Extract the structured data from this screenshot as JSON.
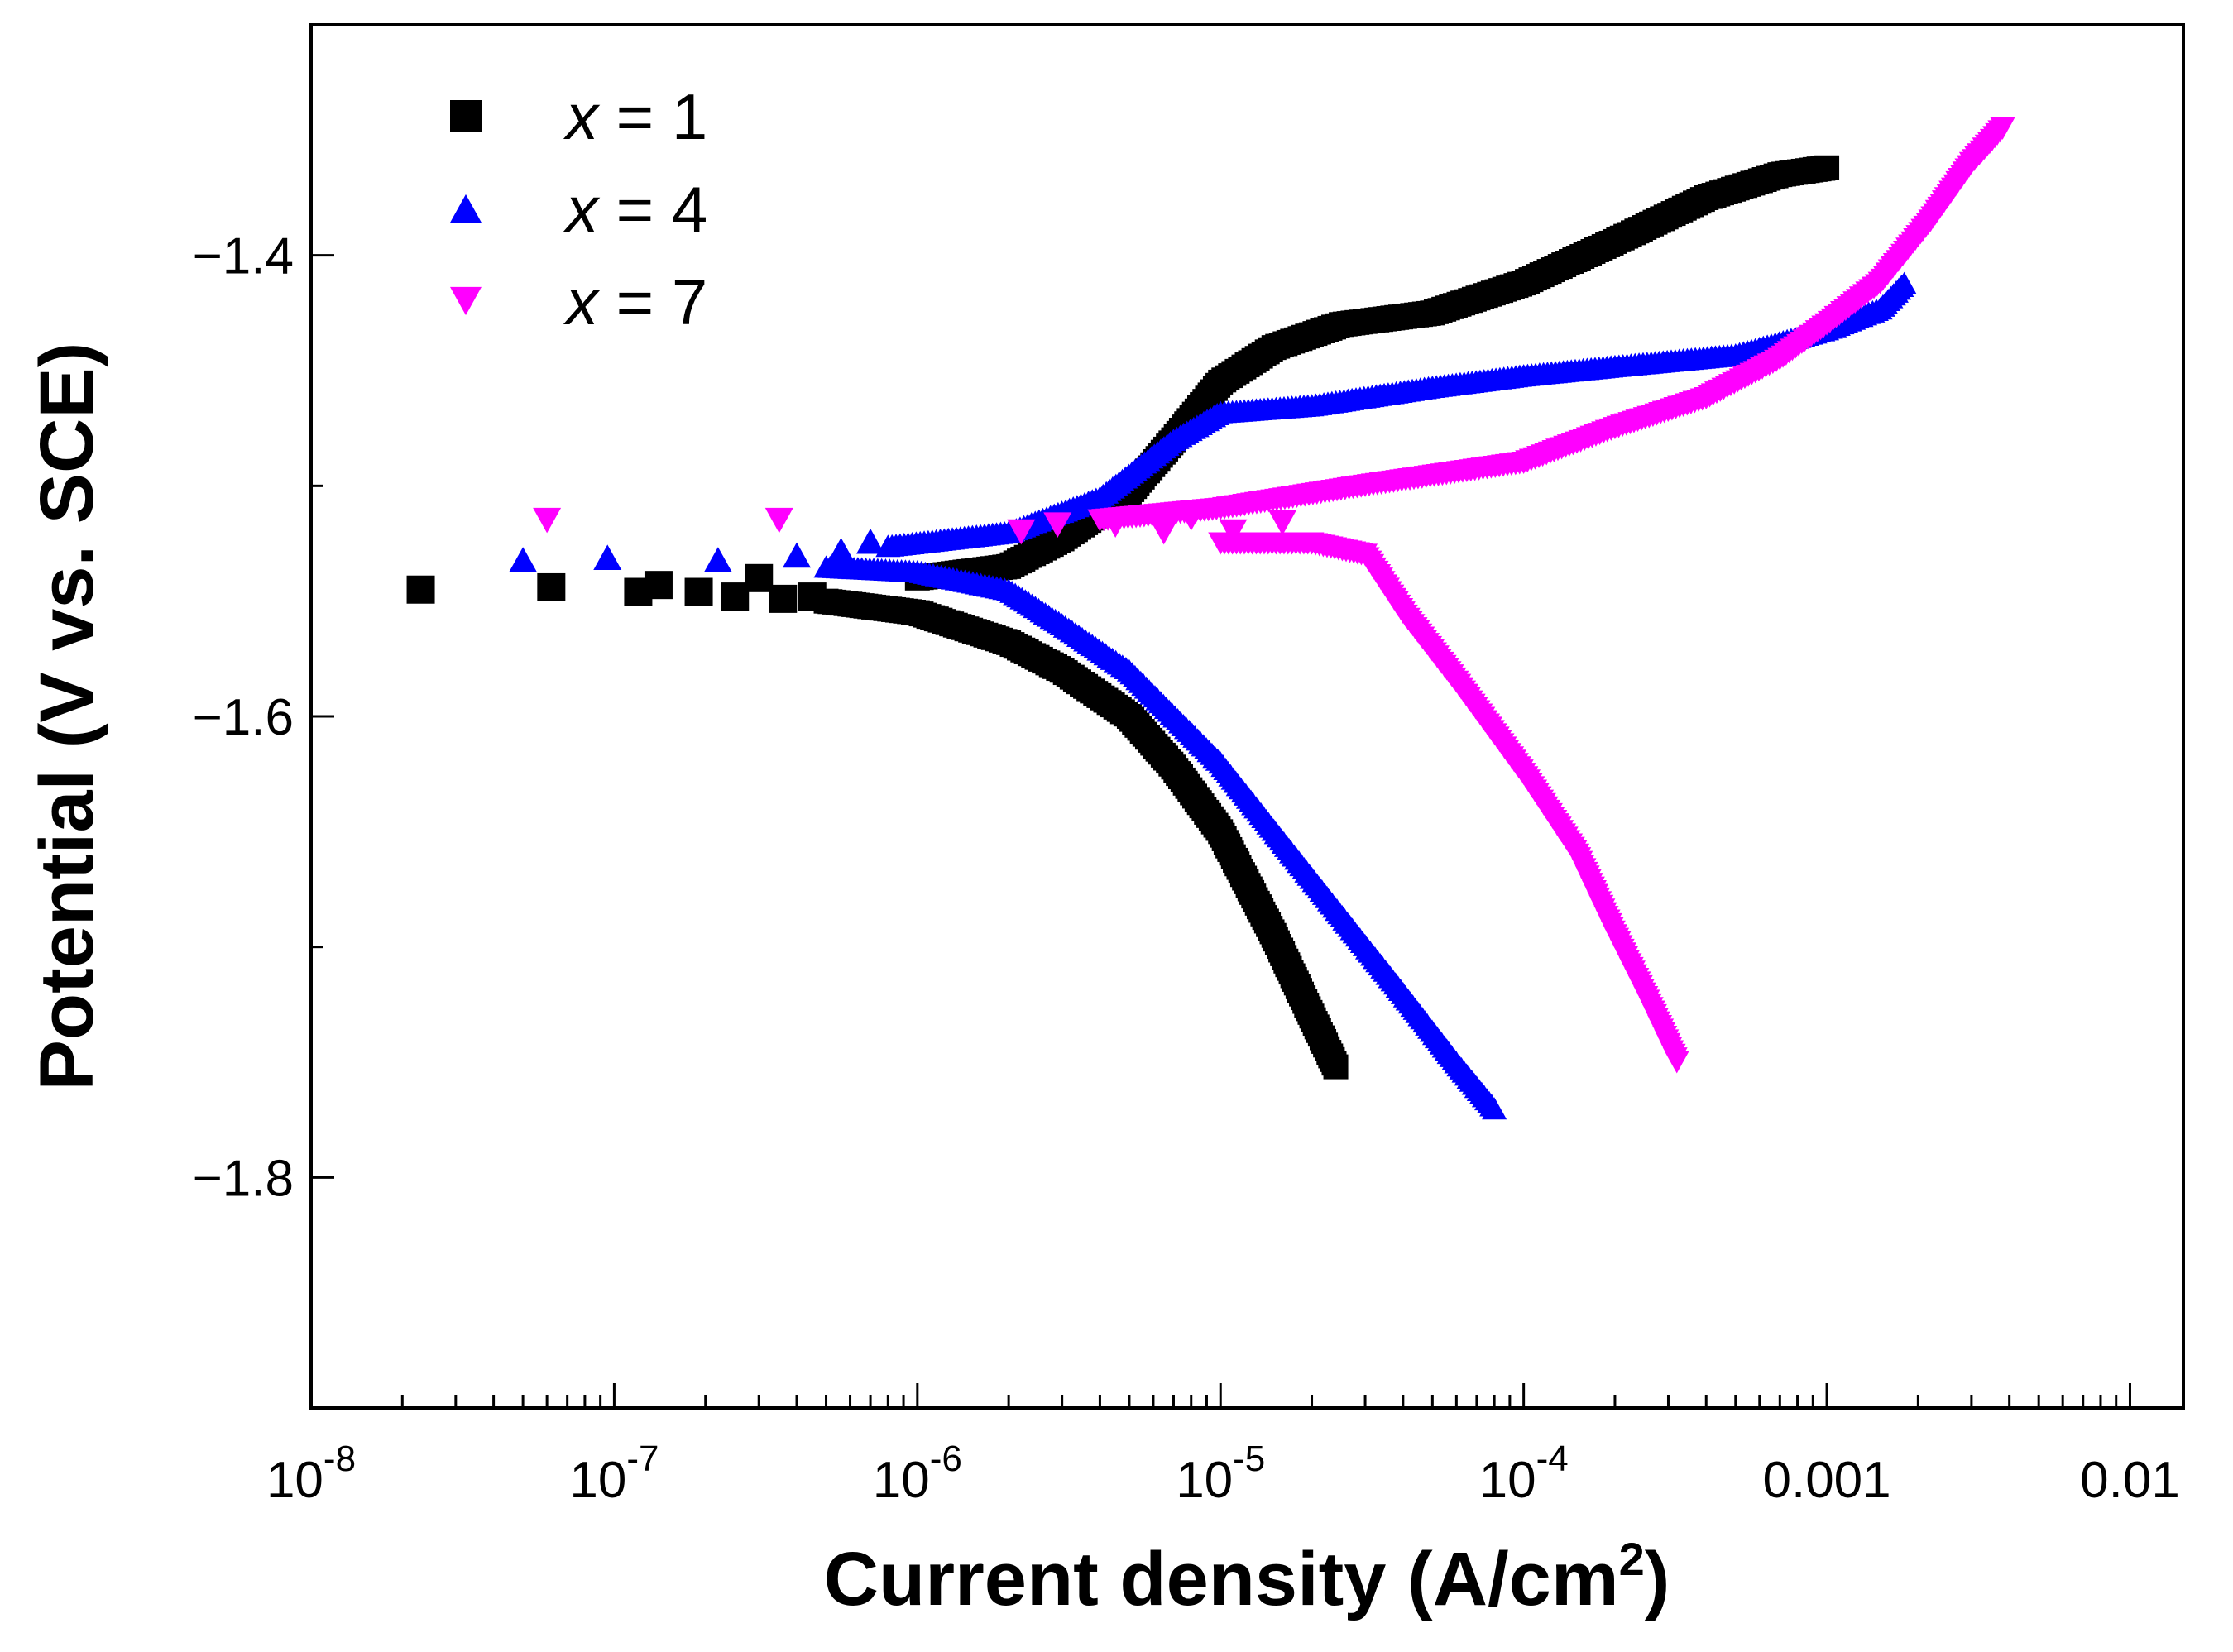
{
  "chart_data": {
    "type": "scatter",
    "xlabel": "Current density (A/cm",
    "xlabel_sup": "2",
    "xlabel_close": ")",
    "ylabel": "Potential (V vs. SCE)",
    "x_scale": "log",
    "xlim": [
      1e-08,
      0.015
    ],
    "ylim": [
      -1.9,
      -1.3
    ],
    "x_ticks": [
      {
        "value": 1e-08,
        "base": "10",
        "exp": "-8"
      },
      {
        "value": 1e-07,
        "base": "10",
        "exp": "-7"
      },
      {
        "value": 1e-06,
        "base": "10",
        "exp": "-6"
      },
      {
        "value": 1e-05,
        "base": "10",
        "exp": "-5"
      },
      {
        "value": 0.0001,
        "base": "10",
        "exp": "-4"
      },
      {
        "value": 0.001,
        "label": "0.001"
      },
      {
        "value": 0.01,
        "label": "0.01"
      }
    ],
    "y_ticks": [
      {
        "value": -1.4,
        "label": "−1.4"
      },
      {
        "value": -1.6,
        "label": "−1.6"
      },
      {
        "value": -1.8,
        "label": "−1.8"
      }
    ],
    "y_minor_ticks": [
      -1.3,
      -1.5,
      -1.7
    ],
    "legend_position": "top-left",
    "series": [
      {
        "name": "x = 1",
        "var": "x",
        "eq": " = ",
        "num": "1",
        "marker": "square",
        "color": "#000000",
        "corrosion_potential": -1.545,
        "anodic": [
          [
            1e-06,
            -1.54
          ],
          [
            2e-06,
            -1.535
          ],
          [
            3e-06,
            -1.523
          ],
          [
            5e-06,
            -1.503
          ],
          [
            7e-06,
            -1.48
          ],
          [
            1e-05,
            -1.455
          ],
          [
            1.5e-05,
            -1.44
          ],
          [
            2.5e-05,
            -1.43
          ],
          [
            5e-05,
            -1.425
          ],
          [
            0.0001,
            -1.412
          ],
          [
            0.0002,
            -1.394
          ],
          [
            0.0004,
            -1.375
          ],
          [
            0.0007,
            -1.365
          ],
          [
            0.001,
            -1.362
          ]
        ],
        "cathodic": [
          [
            5e-07,
            -1.55
          ],
          [
            1e-06,
            -1.555
          ],
          [
            2e-06,
            -1.568
          ],
          [
            3e-06,
            -1.58
          ],
          [
            5e-06,
            -1.6
          ],
          [
            7e-06,
            -1.622
          ],
          [
            1e-05,
            -1.65
          ],
          [
            1.5e-05,
            -1.695
          ],
          [
            2e-05,
            -1.73
          ],
          [
            2.4e-05,
            -1.752
          ]
        ],
        "scatter_points": [
          [
            2.3e-08,
            -1.545
          ],
          [
            6.2e-08,
            -1.544
          ],
          [
            1.2e-07,
            -1.546
          ],
          [
            1.4e-07,
            -1.543
          ],
          [
            1.9e-07,
            -1.546
          ],
          [
            2.5e-07,
            -1.548
          ],
          [
            3e-07,
            -1.54
          ],
          [
            3.6e-07,
            -1.549
          ],
          [
            4.5e-07,
            -1.548
          ]
        ]
      },
      {
        "name": "x = 4",
        "var": "x",
        "eq": " = ",
        "num": "4",
        "marker": "triangle-up",
        "color": "#0000ff",
        "corrosion_potential": -1.535,
        "anodic": [
          [
            8e-07,
            -1.526
          ],
          [
            2e-06,
            -1.52
          ],
          [
            4e-06,
            -1.505
          ],
          [
            7e-06,
            -1.48
          ],
          [
            1e-05,
            -1.468
          ],
          [
            2e-05,
            -1.465
          ],
          [
            5e-05,
            -1.457
          ],
          [
            0.0001,
            -1.452
          ],
          [
            0.0002,
            -1.448
          ],
          [
            0.0005,
            -1.443
          ],
          [
            0.001,
            -1.432
          ],
          [
            0.0015,
            -1.423
          ],
          [
            0.0018,
            -1.412
          ]
        ],
        "cathodic": [
          [
            5e-07,
            -1.535
          ],
          [
            1e-06,
            -1.537
          ],
          [
            2e-06,
            -1.545
          ],
          [
            3e-06,
            -1.56
          ],
          [
            5e-06,
            -1.58
          ],
          [
            1e-05,
            -1.62
          ],
          [
            2e-05,
            -1.67
          ],
          [
            4e-05,
            -1.72
          ],
          [
            6e-05,
            -1.75
          ],
          [
            8e-05,
            -1.77
          ]
        ],
        "scatter_points": [
          [
            5e-08,
            -1.532
          ],
          [
            9.5e-08,
            -1.531
          ],
          [
            2.2e-07,
            -1.532
          ],
          [
            4e-07,
            -1.53
          ],
          [
            5.6e-07,
            -1.528
          ],
          [
            7e-07,
            -1.524
          ]
        ]
      },
      {
        "name": "x = 7",
        "var": "x",
        "eq": " = ",
        "num": "7",
        "marker": "triangle-down",
        "color": "#ff00ff",
        "corrosion_potential": -1.52,
        "anodic": [
          [
            4e-06,
            -1.515
          ],
          [
            1e-05,
            -1.51
          ],
          [
            3e-05,
            -1.5
          ],
          [
            0.0001,
            -1.49
          ],
          [
            0.0002,
            -1.475
          ],
          [
            0.0004,
            -1.462
          ],
          [
            0.0007,
            -1.445
          ],
          [
            0.001,
            -1.43
          ],
          [
            0.0015,
            -1.412
          ],
          [
            0.0022,
            -1.385
          ],
          [
            0.003,
            -1.36
          ],
          [
            0.0038,
            -1.345
          ]
        ],
        "cathodic": [
          [
            1e-05,
            -1.525
          ],
          [
            2e-05,
            -1.525
          ],
          [
            3e-05,
            -1.53
          ],
          [
            4e-05,
            -1.555
          ],
          [
            6e-05,
            -1.585
          ],
          [
            0.0001,
            -1.625
          ],
          [
            0.00015,
            -1.66
          ],
          [
            0.0002,
            -1.695
          ],
          [
            0.00026,
            -1.725
          ],
          [
            0.00032,
            -1.75
          ]
        ],
        "scatter_points": [
          [
            6e-08,
            -1.515
          ],
          [
            3.5e-07,
            -1.515
          ],
          [
            2.2e-06,
            -1.52
          ],
          [
            2.9e-06,
            -1.517
          ],
          [
            4.5e-06,
            -1.517
          ],
          [
            6.5e-06,
            -1.52
          ],
          [
            8e-06,
            -1.514
          ],
          [
            1.1e-05,
            -1.52
          ],
          [
            1.6e-05,
            -1.516
          ]
        ]
      }
    ]
  }
}
